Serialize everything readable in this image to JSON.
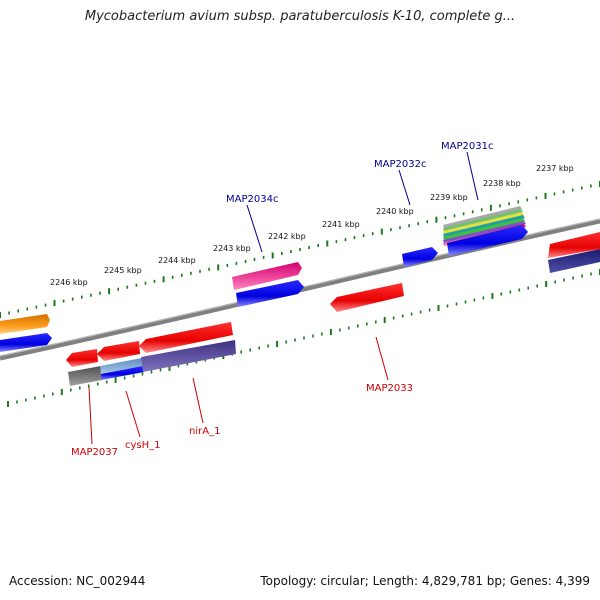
{
  "title": "Mycobacterium avium subsp. paratuberculosis K-10, complete g...",
  "footer": {
    "accession": "Accession: NC_002944",
    "summary": "Topology: circular; Length: 4,829,781 bp; Genes: 4,399"
  },
  "scale": {
    "labels": [
      "2246 kbp",
      "2245 kbp",
      "2244 kbp",
      "2243 kbp",
      "2242 kbp",
      "2241 kbp",
      "2240 kbp",
      "2239 kbp",
      "2238 kbp",
      "2237 kbp"
    ]
  },
  "genes": {
    "forward_strand": [
      "MAP2034c",
      "MAP2032c",
      "MAP2031c"
    ],
    "reverse_strand": [
      "MAP2037",
      "cysH_1",
      "nirA_1",
      "MAP2033"
    ]
  },
  "colors": {
    "forward_label": "#00008b",
    "reverse_label": "#cc0000",
    "backbone": "#808080",
    "ticks": "#1a7a1a"
  }
}
